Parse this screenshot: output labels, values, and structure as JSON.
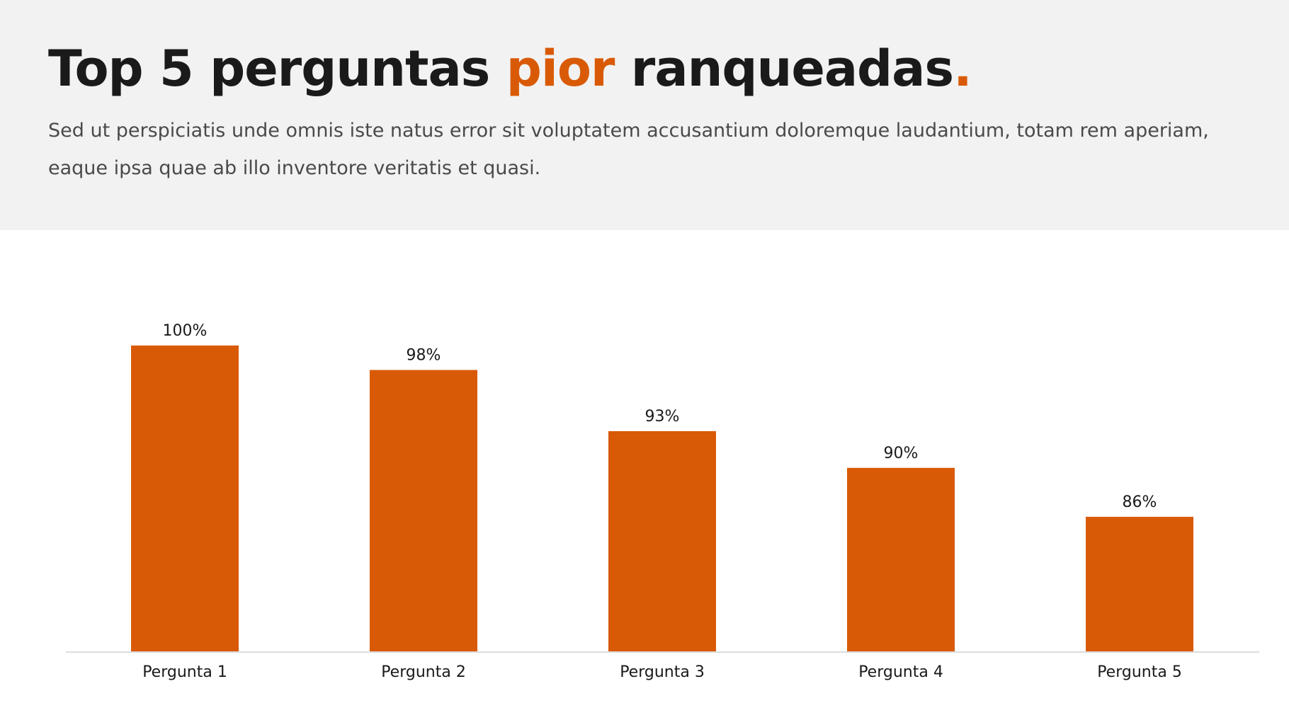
{
  "header": {
    "title_part1": "Top 5 perguntas ",
    "title_accent": "pior",
    "title_part2": " ranqueadas",
    "title_period": ".",
    "subtitle": "Sed ut perspiciatis unde omnis iste natus error sit voluptatem accusantium doloremque laudantium, totam rem aperiam, eaque ipsa quae ab illo inventore veritatis et quasi."
  },
  "colors": {
    "accent": "#d95a06",
    "header_bg": "#f2f2f2",
    "text": "#1a1a1a"
  },
  "chart_data": {
    "type": "bar",
    "categories": [
      "Pergunta 1",
      "Pergunta 2",
      "Pergunta 3",
      "Pergunta 4",
      "Pergunta 5"
    ],
    "values": [
      100,
      98,
      93,
      90,
      86
    ],
    "value_labels": [
      "100%",
      "98%",
      "93%",
      "90%",
      "86%"
    ],
    "title": "",
    "xlabel": "",
    "ylabel": "",
    "ylim": [
      75,
      100
    ],
    "grid": false,
    "legend": "none"
  }
}
